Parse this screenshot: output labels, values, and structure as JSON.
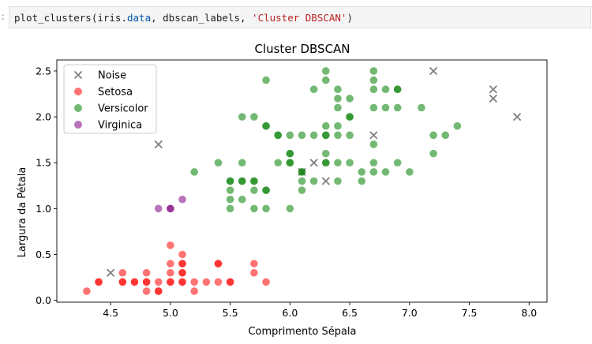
{
  "cell": {
    "prompt": ":",
    "code": {
      "func": "plot_clusters(iris.",
      "attr": "data",
      "mid": ", dbscan_labels, ",
      "str": "'Cluster DBSCAN'",
      "end": ")"
    }
  },
  "chart_data": {
    "type": "scatter",
    "title": "Cluster DBSCAN",
    "xlabel": "Comprimento Sépala",
    "ylabel": "Largura da Pétala",
    "xlim": [
      4.05,
      8.15
    ],
    "ylim": [
      -0.02,
      2.62
    ],
    "xticks": [
      "4.5",
      "5.0",
      "5.5",
      "6.0",
      "6.5",
      "7.0",
      "7.5",
      "8.0"
    ],
    "yticks": [
      "0.0",
      "0.5",
      "1.0",
      "1.5",
      "2.0",
      "2.5"
    ],
    "grid": false,
    "legend_position": "top-left",
    "series": [
      {
        "name": "Noise",
        "marker": "x",
        "color": "#7f7f7f",
        "points": [
          [
            4.5,
            0.3
          ],
          [
            4.9,
            1.7
          ],
          [
            6.1,
            1.4
          ],
          [
            6.2,
            1.5
          ],
          [
            6.3,
            1.3
          ],
          [
            6.7,
            1.8
          ],
          [
            7.2,
            2.5
          ],
          [
            7.7,
            2.3
          ],
          [
            7.7,
            2.2
          ],
          [
            7.9,
            2.0
          ]
        ]
      },
      {
        "name": "Setosa",
        "marker": "o",
        "color": "#ff0000",
        "points": [
          [
            4.3,
            0.1
          ],
          [
            4.4,
            0.2
          ],
          [
            4.4,
            0.2
          ],
          [
            4.6,
            0.2
          ],
          [
            4.6,
            0.2
          ],
          [
            4.6,
            0.3
          ],
          [
            4.7,
            0.2
          ],
          [
            4.7,
            0.2
          ],
          [
            4.8,
            0.2
          ],
          [
            4.8,
            0.2
          ],
          [
            4.8,
            0.1
          ],
          [
            4.8,
            0.3
          ],
          [
            4.9,
            0.2
          ],
          [
            4.9,
            0.1
          ],
          [
            4.9,
            0.1
          ],
          [
            5.0,
            0.2
          ],
          [
            5.0,
            0.2
          ],
          [
            5.0,
            0.4
          ],
          [
            5.0,
            0.3
          ],
          [
            5.0,
            0.6
          ],
          [
            5.1,
            0.2
          ],
          [
            5.1,
            0.2
          ],
          [
            5.1,
            0.3
          ],
          [
            5.1,
            0.4
          ],
          [
            5.1,
            0.4
          ],
          [
            5.1,
            0.3
          ],
          [
            5.1,
            0.5
          ],
          [
            5.2,
            0.2
          ],
          [
            5.2,
            0.1
          ],
          [
            5.3,
            0.2
          ],
          [
            5.4,
            0.2
          ],
          [
            5.4,
            0.4
          ],
          [
            5.4,
            0.4
          ],
          [
            5.5,
            0.2
          ],
          [
            5.5,
            0.2
          ],
          [
            5.7,
            0.3
          ],
          [
            5.7,
            0.4
          ],
          [
            5.8,
            0.2
          ]
        ]
      },
      {
        "name": "Versicolor",
        "marker": "o",
        "color": "#008000",
        "points": [
          [
            5.2,
            1.4
          ],
          [
            5.4,
            1.5
          ],
          [
            5.5,
            1.0
          ],
          [
            5.5,
            1.1
          ],
          [
            5.5,
            1.2
          ],
          [
            5.5,
            1.3
          ],
          [
            5.5,
            1.3
          ],
          [
            5.6,
            1.1
          ],
          [
            5.6,
            1.3
          ],
          [
            5.6,
            1.3
          ],
          [
            5.6,
            1.5
          ],
          [
            5.6,
            2.0
          ],
          [
            5.7,
            1.0
          ],
          [
            5.7,
            1.2
          ],
          [
            5.7,
            1.3
          ],
          [
            5.7,
            1.3
          ],
          [
            5.7,
            2.0
          ],
          [
            5.8,
            1.0
          ],
          [
            5.8,
            1.2
          ],
          [
            5.8,
            1.2
          ],
          [
            5.8,
            1.9
          ],
          [
            5.8,
            1.9
          ],
          [
            5.8,
            2.4
          ],
          [
            5.9,
            1.5
          ],
          [
            5.9,
            1.8
          ],
          [
            5.9,
            1.8
          ],
          [
            6.0,
            1.0
          ],
          [
            6.0,
            1.5
          ],
          [
            6.0,
            1.5
          ],
          [
            6.0,
            1.6
          ],
          [
            6.0,
            1.6
          ],
          [
            6.0,
            1.8
          ],
          [
            6.1,
            1.2
          ],
          [
            6.1,
            1.3
          ],
          [
            6.1,
            1.4
          ],
          [
            6.1,
            1.4
          ],
          [
            6.1,
            1.8
          ],
          [
            6.2,
            1.3
          ],
          [
            6.2,
            1.8
          ],
          [
            6.2,
            2.3
          ],
          [
            6.3,
            1.5
          ],
          [
            6.3,
            1.5
          ],
          [
            6.3,
            1.6
          ],
          [
            6.3,
            1.8
          ],
          [
            6.3,
            1.8
          ],
          [
            6.3,
            1.9
          ],
          [
            6.3,
            2.4
          ],
          [
            6.3,
            2.5
          ],
          [
            6.4,
            1.3
          ],
          [
            6.4,
            1.5
          ],
          [
            6.4,
            1.8
          ],
          [
            6.4,
            1.9
          ],
          [
            6.4,
            2.1
          ],
          [
            6.4,
            2.2
          ],
          [
            6.4,
            2.3
          ],
          [
            6.5,
            1.5
          ],
          [
            6.5,
            1.8
          ],
          [
            6.5,
            2.0
          ],
          [
            6.5,
            2.0
          ],
          [
            6.5,
            2.2
          ],
          [
            6.6,
            1.3
          ],
          [
            6.6,
            1.4
          ],
          [
            6.7,
            1.4
          ],
          [
            6.7,
            1.5
          ],
          [
            6.7,
            1.7
          ],
          [
            6.7,
            2.1
          ],
          [
            6.7,
            2.3
          ],
          [
            6.7,
            2.4
          ],
          [
            6.7,
            2.5
          ],
          [
            6.8,
            1.4
          ],
          [
            6.8,
            2.1
          ],
          [
            6.8,
            2.3
          ],
          [
            6.9,
            1.5
          ],
          [
            6.9,
            2.1
          ],
          [
            6.9,
            2.3
          ],
          [
            6.9,
            2.3
          ],
          [
            7.0,
            1.4
          ],
          [
            7.1,
            2.1
          ],
          [
            7.2,
            1.6
          ],
          [
            7.2,
            1.8
          ],
          [
            7.3,
            1.8
          ],
          [
            7.4,
            1.9
          ]
        ]
      },
      {
        "name": "Virginica",
        "marker": "o",
        "color": "#800080",
        "points": [
          [
            4.9,
            1.0
          ],
          [
            5.0,
            1.0
          ],
          [
            5.0,
            1.0
          ],
          [
            5.1,
            1.1
          ]
        ]
      }
    ]
  }
}
